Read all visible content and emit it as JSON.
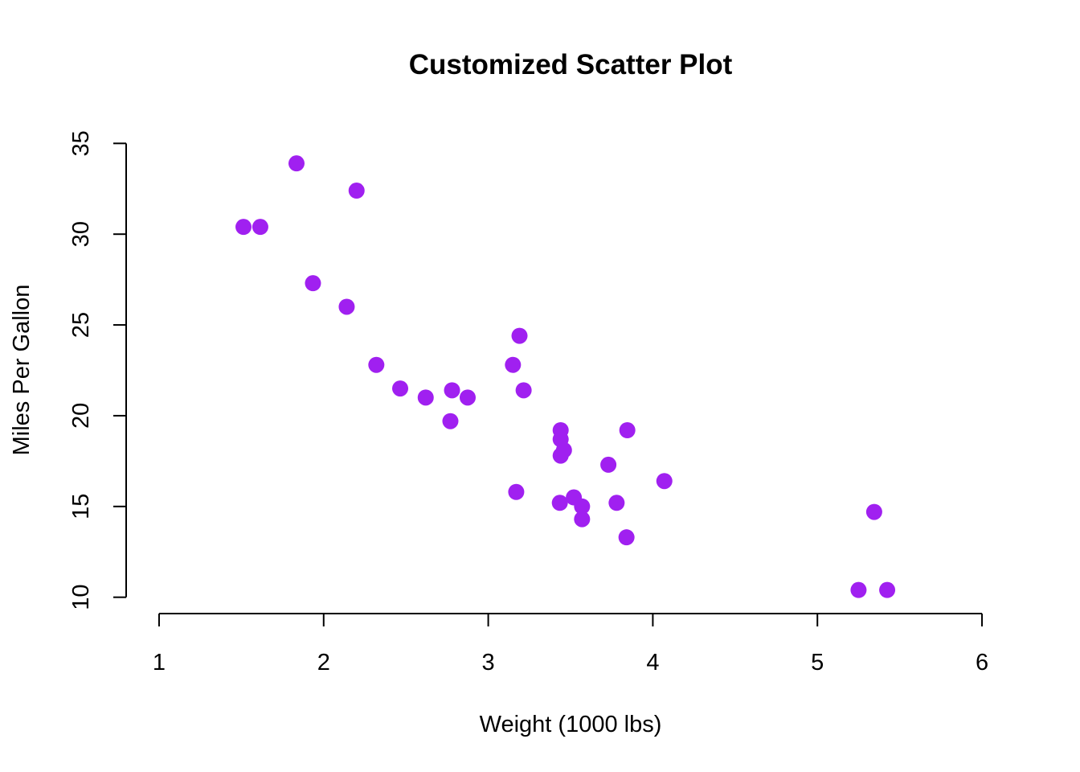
{
  "chart_data": {
    "type": "scatter",
    "title": "Customized Scatter Plot",
    "xlabel": "Weight (1000 lbs)",
    "ylabel": "Miles Per Gallon",
    "xlim": [
      0.8,
      6.2
    ],
    "ylim": [
      9.1,
      35.9
    ],
    "xticks": [
      1,
      2,
      3,
      4,
      5,
      6
    ],
    "yticks": [
      10,
      15,
      20,
      25,
      30,
      35
    ],
    "grid": false,
    "legend": false,
    "point_color": "#A020F0",
    "x": [
      2.62,
      2.875,
      2.32,
      3.215,
      3.44,
      3.46,
      3.57,
      3.19,
      3.15,
      3.44,
      3.44,
      4.07,
      3.73,
      3.78,
      5.25,
      5.424,
      5.345,
      2.2,
      1.615,
      1.835,
      2.465,
      3.52,
      3.435,
      3.84,
      3.845,
      1.935,
      2.14,
      1.513,
      3.17,
      2.77,
      3.57,
      2.78
    ],
    "y": [
      21.0,
      21.0,
      22.8,
      21.4,
      18.7,
      18.1,
      14.3,
      24.4,
      22.8,
      19.2,
      17.8,
      16.4,
      17.3,
      15.2,
      10.4,
      10.4,
      14.7,
      32.4,
      30.4,
      33.9,
      21.5,
      15.5,
      15.2,
      13.3,
      19.2,
      27.3,
      26.0,
      30.4,
      15.8,
      19.7,
      15.0,
      21.4
    ]
  }
}
